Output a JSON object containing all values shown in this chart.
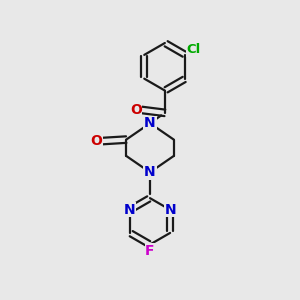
{
  "background_color": "#e8e8e8",
  "bond_color": "#1a1a1a",
  "n_color": "#0000cc",
  "o_color": "#cc0000",
  "f_color": "#cc00cc",
  "cl_color": "#00aa00",
  "line_width": 1.6,
  "font_size": 10,
  "figsize": [
    3.0,
    3.0
  ],
  "dpi": 100,
  "xlim": [
    0,
    10
  ],
  "ylim": [
    0,
    10
  ]
}
